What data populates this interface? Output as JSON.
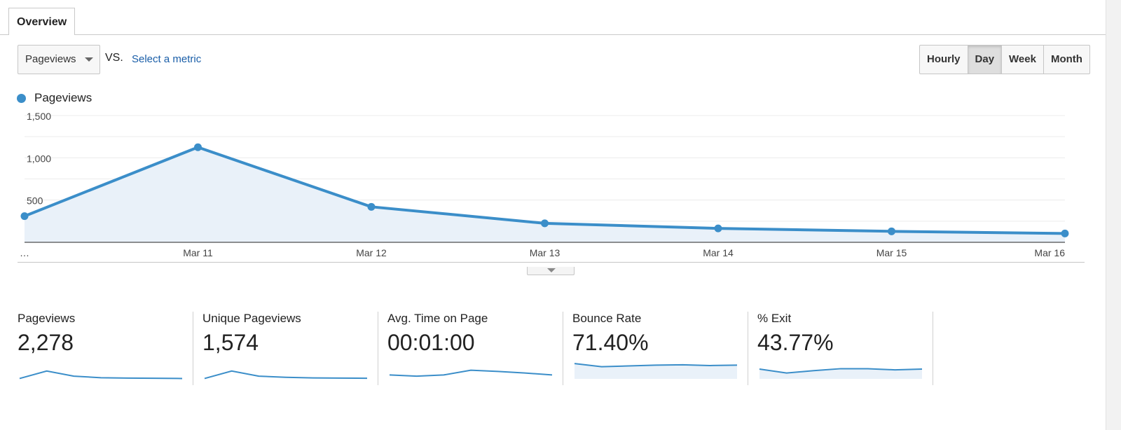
{
  "tabs": [
    {
      "label": "Overview"
    }
  ],
  "metric": {
    "selected": "Pageviews",
    "vs_label": "VS.",
    "compare_link": "Select a metric"
  },
  "granularity": {
    "options": [
      "Hourly",
      "Day",
      "Week",
      "Month"
    ],
    "selected": "Day"
  },
  "legend": {
    "label": "Pageviews"
  },
  "colors": {
    "accent": "#3b8ec9",
    "fill": "#e9f1f9",
    "link": "#1a5ea8"
  },
  "chart_data": {
    "type": "area",
    "series": [
      {
        "name": "Pageviews",
        "values": [
          310,
          1125,
          420,
          225,
          165,
          130,
          105
        ]
      }
    ],
    "x": [
      "…",
      "Mar 11",
      "Mar 12",
      "Mar 13",
      "Mar 14",
      "Mar 15",
      "Mar 16"
    ],
    "y_ticks": [
      "500",
      "1,000",
      "1,500"
    ],
    "ylim": [
      0,
      1500
    ],
    "grid": true
  },
  "scorecards": [
    {
      "label": "Pageviews",
      "value": "2,278",
      "spark": [
        2,
        40,
        14,
        6,
        4,
        3,
        2
      ],
      "spark_fill": false
    },
    {
      "label": "Unique Pageviews",
      "value": "1,574",
      "spark": [
        2,
        40,
        14,
        8,
        5,
        4,
        3
      ],
      "spark_fill": false
    },
    {
      "label": "Avg. Time on Page",
      "value": "00:01:00",
      "spark": [
        20,
        14,
        20,
        44,
        38,
        30,
        20
      ],
      "spark_fill": false
    },
    {
      "label": "Bounce Rate",
      "value": "71.40%",
      "spark": [
        78,
        62,
        66,
        70,
        72,
        68,
        70
      ],
      "spark_fill": true
    },
    {
      "label": "% Exit",
      "value": "43.77%",
      "spark": [
        50,
        30,
        42,
        52,
        52,
        46,
        50
      ],
      "spark_fill": true
    }
  ]
}
